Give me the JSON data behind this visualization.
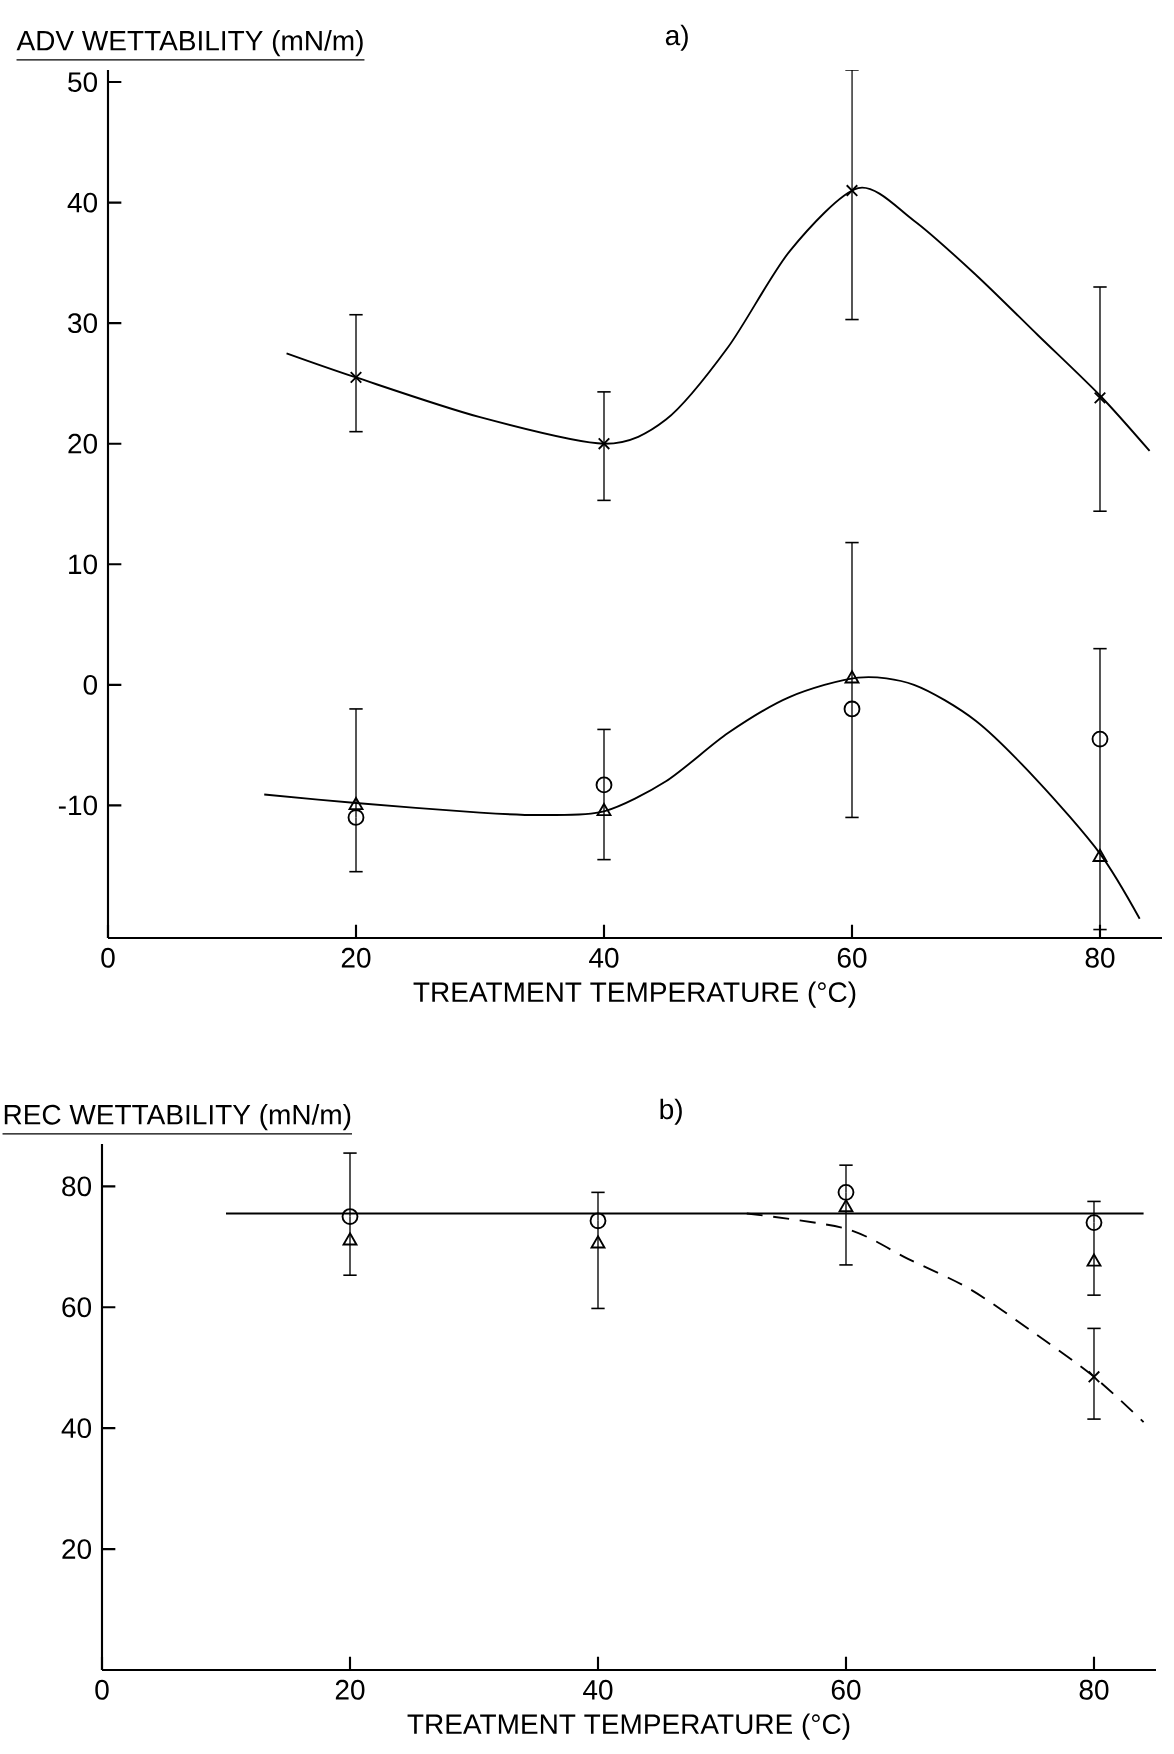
{
  "chart_data": [
    {
      "type": "scatter",
      "title": "a)",
      "xlabel": "TREATMENT TEMPERATURE (°C)",
      "ylabel": "ADV WETTABILITY (mN/m)",
      "xlim": [
        0,
        85
      ],
      "ylim": [
        -21,
        51
      ],
      "xticks": [
        0,
        20,
        40,
        60,
        80
      ],
      "yticks": [
        -10,
        0,
        10,
        20,
        30,
        40,
        50
      ],
      "series": [
        {
          "type": "line",
          "color": "#000000",
          "marker": "none",
          "line_style": "solid",
          "x": [
            14.4,
            20,
            30,
            40,
            45,
            50,
            55,
            60.5,
            65,
            70,
            75,
            80,
            84
          ],
          "values": [
            27.5,
            25.5,
            22.2,
            20,
            22,
            28,
            36,
            41.2,
            38.5,
            34,
            29,
            24,
            19.4
          ]
        },
        {
          "type": "line",
          "color": "#000000",
          "marker": "none",
          "line_style": "solid",
          "x": [
            12.6,
            20,
            30,
            35,
            40,
            45,
            50,
            55,
            60.5,
            65,
            70,
            75,
            80,
            83.2
          ],
          "values": [
            -9.1,
            -9.8,
            -10.6,
            -10.8,
            -10.5,
            -8,
            -4,
            -1,
            0.6,
            0,
            -3,
            -8,
            -14,
            -19.4
          ]
        },
        {
          "type": "scatter",
          "color": "#000000",
          "marker": "cross",
          "x": [
            20,
            40,
            60,
            80
          ],
          "values": [
            25.5,
            20,
            41,
            23.8
          ],
          "errors": [
            [
              21,
              30.7
            ],
            [
              15.3,
              24.3
            ],
            [
              30.3,
              51
            ],
            [
              14.4,
              33
            ]
          ]
        },
        {
          "type": "scatter",
          "color": "#000000",
          "marker": "triangle",
          "x": [
            20,
            40,
            60,
            80
          ],
          "values": [
            -10,
            -10.5,
            0.5,
            -14.3
          ]
        },
        {
          "type": "scatter",
          "color": "#000000",
          "marker": "circle",
          "x": [
            20,
            40,
            60,
            80
          ],
          "values": [
            -11,
            -8.3,
            -2,
            -4.5
          ],
          "errors": [
            [
              -15.5,
              -2
            ],
            [
              -14.5,
              -3.7
            ],
            [
              -11,
              11.8
            ],
            [
              -20.3,
              3
            ]
          ]
        }
      ]
    },
    {
      "type": "scatter",
      "title": "b)",
      "xlabel": "TREATMENT TEMPERATURE (°C)",
      "ylabel": "REC WETTABILITY (mN/m)",
      "xlim": [
        0,
        85
      ],
      "ylim": [
        0,
        87
      ],
      "xticks": [
        0,
        20,
        40,
        60,
        80
      ],
      "yticks": [
        20,
        40,
        60,
        80
      ],
      "series": [
        {
          "type": "line",
          "color": "#000000",
          "marker": "none",
          "line_style": "solid",
          "x": [
            10,
            84
          ],
          "values": [
            75.5,
            75.5
          ]
        },
        {
          "type": "line",
          "color": "#000000",
          "marker": "none",
          "line_style": "dashed",
          "x": [
            52,
            60,
            65,
            70,
            75,
            80,
            84
          ],
          "values": [
            75.5,
            73,
            68,
            63,
            56,
            48.5,
            41
          ]
        },
        {
          "type": "scatter",
          "color": "#000000",
          "marker": "circle",
          "x": [
            20,
            40,
            60,
            80
          ],
          "values": [
            75,
            74.3,
            79,
            74
          ],
          "errors": [
            [
              65.3,
              85.5
            ],
            [
              59.8,
              79
            ],
            [
              67,
              83.5
            ],
            [
              62,
              77.5
            ]
          ]
        },
        {
          "type": "scatter",
          "color": "#000000",
          "marker": "triangle",
          "x": [
            20,
            40,
            60,
            80
          ],
          "values": [
            71,
            70.5,
            76.5,
            67.5
          ]
        },
        {
          "type": "scatter",
          "color": "#000000",
          "marker": "cross",
          "x": [
            80
          ],
          "values": [
            48.5
          ],
          "errors": [
            [
              41.5,
              56.5
            ]
          ]
        }
      ]
    }
  ]
}
